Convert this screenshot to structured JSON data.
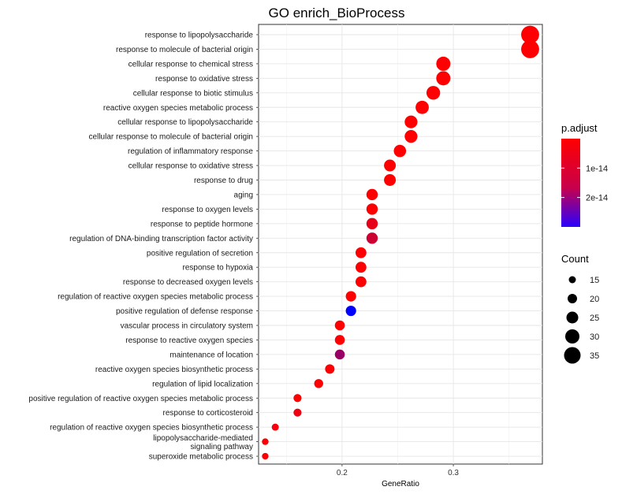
{
  "chart_data": {
    "type": "scatter",
    "title": "GO enrich_BioProcess",
    "xlabel": "GeneRatio",
    "ylabel": "",
    "xlim": [
      0.125,
      0.38
    ],
    "x_ticks": [
      0.2,
      0.3
    ],
    "x_tick_labels": [
      "0.2",
      "0.3"
    ],
    "grid": true,
    "categories": [
      "response to lipopolysaccharide",
      "response to molecule of bacterial origin",
      "cellular response to chemical stress",
      "response to oxidative stress",
      "cellular response to biotic stimulus",
      "reactive oxygen species metabolic process",
      "cellular response to lipopolysaccharide",
      "cellular response to molecule of bacterial origin",
      "regulation of inflammatory response",
      "cellular response to oxidative stress",
      "response to drug",
      "aging",
      "response to oxygen levels",
      "response to peptide hormone",
      "regulation of DNA-binding transcription factor activity",
      "positive regulation of secretion",
      "response to hypoxia",
      "response to decreased oxygen levels",
      "regulation of reactive oxygen species metabolic process",
      "positive regulation of defense response",
      "vascular process in circulatory system",
      "response to reactive oxygen species",
      "maintenance of location",
      "reactive oxygen species biosynthetic process",
      "regulation of lipid localization",
      "positive regulation of reactive oxygen species metabolic process",
      "response to corticosteroid",
      "regulation of reactive oxygen species biosynthetic process",
      "lipopolysaccharide-mediated\nsignaling pathway",
      "superoxide metabolic process"
    ],
    "gene_ratio": [
      0.369,
      0.369,
      0.291,
      0.291,
      0.282,
      0.272,
      0.262,
      0.262,
      0.252,
      0.243,
      0.243,
      0.227,
      0.227,
      0.227,
      0.227,
      0.217,
      0.217,
      0.217,
      0.208,
      0.208,
      0.198,
      0.198,
      0.198,
      0.189,
      0.179,
      0.16,
      0.16,
      0.14,
      0.131,
      0.131
    ],
    "count": [
      38,
      38,
      30,
      30,
      29,
      28,
      27,
      27,
      26,
      25,
      25,
      24,
      24,
      24,
      24,
      23,
      23,
      23,
      22,
      22,
      21,
      21,
      21,
      20,
      19,
      17,
      17,
      15,
      14,
      14
    ],
    "p_adjust": [
      1e-16,
      1e-16,
      1e-16,
      1e-16,
      1e-16,
      1e-16,
      1e-16,
      1e-16,
      1e-16,
      1e-16,
      1e-16,
      1e-16,
      1e-16,
      3e-15,
      6e-15,
      1e-16,
      1e-16,
      1e-16,
      1e-16,
      3e-14,
      1e-16,
      1e-16,
      1.2e-14,
      1e-16,
      1e-16,
      1e-16,
      2e-15,
      1e-15,
      1e-16,
      1e-16
    ],
    "color_legend": {
      "title": "p.adjust",
      "ticks": [
        1e-14,
        2e-14
      ],
      "tick_labels": [
        "1e-14",
        "2e-14"
      ],
      "range": [
        0,
        3e-14
      ],
      "low_color": "#ff0000",
      "high_color": "#0000ff"
    },
    "size_legend": {
      "title": "Count",
      "values": [
        15,
        20,
        25,
        30,
        35
      ],
      "labels": [
        "15",
        "20",
        "25",
        "30",
        "35"
      ]
    },
    "legend_position": "right"
  }
}
